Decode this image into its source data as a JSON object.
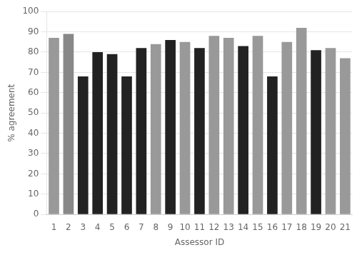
{
  "chart_data": {
    "type": "bar",
    "categories": [
      "1",
      "2",
      "3",
      "4",
      "5",
      "6",
      "7",
      "8",
      "9",
      "10",
      "11",
      "12",
      "13",
      "14",
      "15",
      "16",
      "17",
      "18",
      "19",
      "20",
      "21"
    ],
    "values": [
      87,
      89,
      68,
      80,
      79,
      68,
      82,
      84,
      86,
      85,
      82,
      88,
      87,
      83,
      88,
      68,
      85,
      92,
      81,
      82,
      77
    ],
    "colors": [
      "#999999",
      "#888888",
      "#222222",
      "#222222",
      "#222222",
      "#222222",
      "#222222",
      "#999999",
      "#222222",
      "#999999",
      "#222222",
      "#999999",
      "#999999",
      "#222222",
      "#999999",
      "#222222",
      "#999999",
      "#999999",
      "#222222",
      "#999999",
      "#999999"
    ],
    "xlabel": "Assessor ID",
    "ylabel": "% agreement",
    "ylim": [
      0,
      100
    ],
    "yticks": [
      0,
      10,
      20,
      30,
      40,
      50,
      60,
      70,
      80,
      90,
      100
    ],
    "grid": true
  }
}
